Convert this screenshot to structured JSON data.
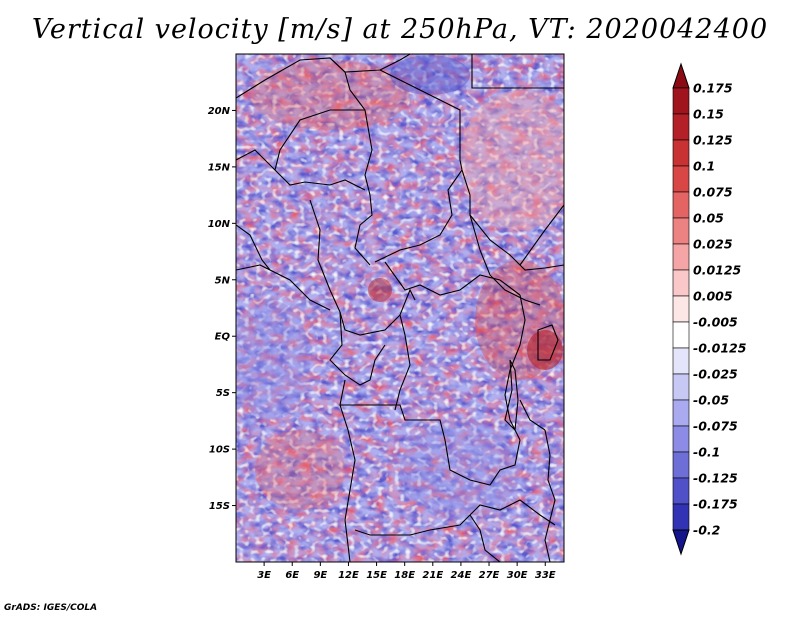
{
  "title": "Vertical velocity [m/s] at 250hPa, VT: 2020042400",
  "footer": "GrADS: IGES/COLA",
  "map": {
    "lon_range": [
      0,
      35
    ],
    "lat_range": [
      -20,
      25
    ],
    "lat_ticks": [
      {
        "value": 20,
        "label": "20N"
      },
      {
        "value": 15,
        "label": "15N"
      },
      {
        "value": 10,
        "label": "10N"
      },
      {
        "value": 5,
        "label": "5N"
      },
      {
        "value": 0,
        "label": "EQ"
      },
      {
        "value": -5,
        "label": "5S"
      },
      {
        "value": -10,
        "label": "10S"
      },
      {
        "value": -15,
        "label": "15S"
      }
    ],
    "lon_ticks": [
      {
        "value": 3,
        "label": "3E"
      },
      {
        "value": 6,
        "label": "6E"
      },
      {
        "value": 9,
        "label": "9E"
      },
      {
        "value": 12,
        "label": "12E"
      },
      {
        "value": 15,
        "label": "15E"
      },
      {
        "value": 18,
        "label": "18E"
      },
      {
        "value": 21,
        "label": "21E"
      },
      {
        "value": 24,
        "label": "24E"
      },
      {
        "value": 27,
        "label": "27E"
      },
      {
        "value": 30,
        "label": "30E"
      },
      {
        "value": 33,
        "label": "33E"
      }
    ]
  },
  "colorbar": {
    "levels": [
      {
        "label": "0.175",
        "color": "#a0141e"
      },
      {
        "label": "0.15",
        "color": "#b42028"
      },
      {
        "label": "0.125",
        "color": "#c83232"
      },
      {
        "label": "0.1",
        "color": "#d84646"
      },
      {
        "label": "0.075",
        "color": "#e46464"
      },
      {
        "label": "0.05",
        "color": "#ec8282"
      },
      {
        "label": "0.025",
        "color": "#f5a5a5"
      },
      {
        "label": "0.0125",
        "color": "#fac8c8"
      },
      {
        "label": "0.005",
        "color": "#fde6e6"
      },
      {
        "label": "-0.005",
        "color": "#ffffff"
      },
      {
        "label": "-0.0125",
        "color": "#e4e4fa"
      },
      {
        "label": "-0.025",
        "color": "#c8c8f5"
      },
      {
        "label": "-0.05",
        "color": "#aaaaf0"
      },
      {
        "label": "-0.075",
        "color": "#8c8ce6"
      },
      {
        "label": "-0.1",
        "color": "#6e6ed7"
      },
      {
        "label": "-0.125",
        "color": "#5050c8"
      },
      {
        "label": "-0.175",
        "color": "#3232b4"
      },
      {
        "label": "-0.2",
        "color": "#1e1ea0"
      }
    ],
    "top_color": "#8c0a14",
    "bottom_color": "#14148c"
  }
}
